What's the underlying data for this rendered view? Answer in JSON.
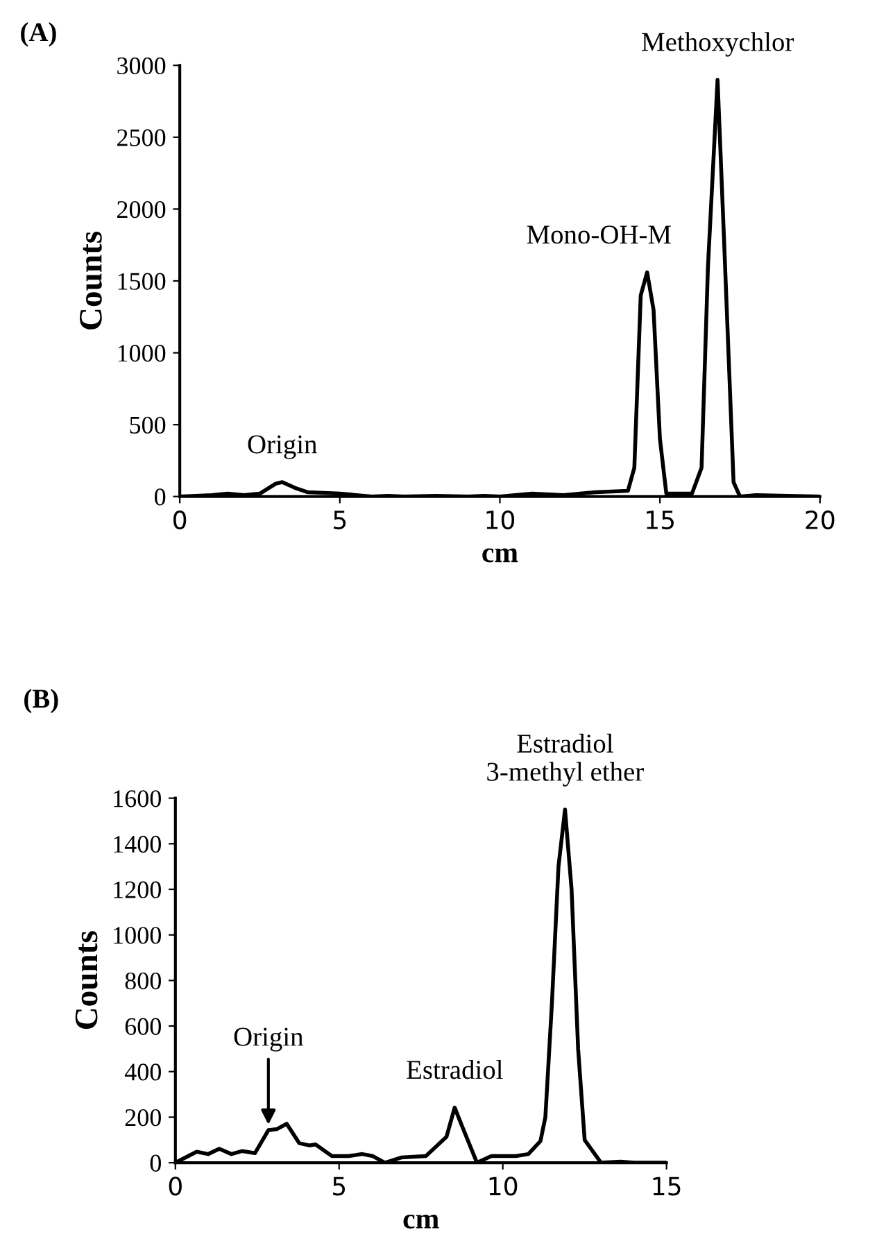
{
  "chart_data": [
    {
      "type": "line",
      "title": "(A)",
      "xlabel": "cm",
      "ylabel": "Counts",
      "xlim": [
        0,
        20
      ],
      "ylim": [
        0,
        3000
      ],
      "xticks": [
        0,
        5,
        10,
        15,
        20
      ],
      "yticks": [
        0,
        500,
        1000,
        1500,
        2000,
        2500,
        3000
      ],
      "grid": false,
      "legend": false,
      "series": [
        {
          "color": "#000000",
          "x": [
            0,
            1,
            1.5,
            2,
            2.5,
            3,
            3.2,
            3.6,
            4,
            5,
            6,
            6.5,
            7,
            8,
            9,
            9.5,
            10,
            11,
            12,
            12.5,
            13,
            14,
            14.2,
            14.4,
            14.6,
            14.8,
            15,
            15.2,
            16,
            16.3,
            16.5,
            16.8,
            17,
            17.3,
            17.5,
            18,
            20
          ],
          "values": [
            0,
            10,
            20,
            10,
            20,
            90,
            100,
            60,
            30,
            20,
            0,
            5,
            0,
            5,
            0,
            5,
            0,
            20,
            10,
            20,
            30,
            40,
            200,
            1400,
            1560,
            1300,
            400,
            20,
            20,
            200,
            1600,
            2900,
            1800,
            100,
            0,
            10,
            0
          ]
        }
      ],
      "annotations": [
        {
          "text": "Origin",
          "x": 3.2,
          "y": 100
        },
        {
          "text": "Mono-OH-M",
          "x": 14.6,
          "y": 1560
        },
        {
          "text": "Methoxychlor",
          "x": 16.8,
          "y": 2900
        }
      ]
    },
    {
      "type": "line",
      "title": "(B)",
      "xlabel": "cm",
      "ylabel": "Counts",
      "xlim": [
        0,
        15
      ],
      "ylim": [
        0,
        1600
      ],
      "xticks": [
        0,
        5,
        10,
        15
      ],
      "yticks": [
        0,
        200,
        400,
        600,
        800,
        1000,
        1200,
        1400,
        1600
      ],
      "grid": false,
      "legend": false,
      "series": [
        {
          "color": "#000000",
          "x": [
            0,
            0.65,
            1.0,
            1.34,
            1.71,
            2.03,
            2.43,
            2.84,
            3.09,
            3.4,
            3.78,
            4.09,
            4.28,
            4.78,
            5.28,
            5.71,
            6.03,
            6.4,
            6.9,
            7.65,
            8.28,
            8.53,
            8.78,
            9.21,
            9.65,
            10.4,
            10.78,
            11.15,
            11.3,
            11.5,
            11.7,
            11.9,
            12.1,
            12.3,
            12.5,
            13.0,
            13.6,
            14,
            15
          ],
          "values": [
            0,
            48,
            38,
            61,
            38,
            51,
            42,
            143,
            147,
            171,
            86,
            76,
            80,
            29,
            29,
            38,
            29,
            0,
            23,
            29,
            114,
            242,
            152,
            0,
            29,
            29,
            38,
            95,
            200,
            700,
            1300,
            1550,
            1200,
            500,
            100,
            0,
            5,
            0,
            0
          ]
        }
      ],
      "annotations": [
        {
          "text": "Origin",
          "x": 2.84,
          "y": 150
        },
        {
          "text": "Estradiol",
          "x": 8.53,
          "y": 242
        },
        {
          "text": "Estradiol\n3-methyl ether",
          "x": 11.9,
          "y": 1550
        }
      ]
    }
  ]
}
